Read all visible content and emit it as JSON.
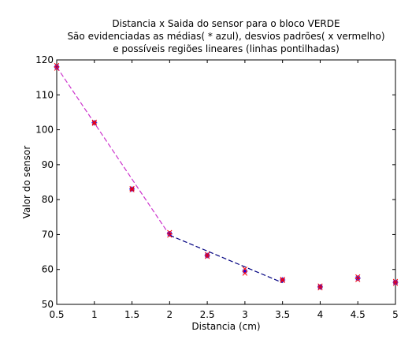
{
  "chart_data": {
    "type": "scatter",
    "title_lines": [
      "Distancia x Saida do sensor para o bloco VERDE",
      "São evidenciadas as médias( * azul), desvios padrões( x vermelho)",
      "e possíveis regiões lineares (linhas pontilhadas)"
    ],
    "xlabel": "Distancia (cm)",
    "ylabel": "Valor do sensor",
    "xlim": [
      0.5,
      5
    ],
    "ylim": [
      50,
      120
    ],
    "xticks": [
      0.5,
      1,
      1.5,
      2,
      2.5,
      3,
      3.5,
      4,
      4.5,
      5
    ],
    "xtick_labels": [
      "0.5",
      "1",
      "1.5",
      "2",
      "2.5",
      "3",
      "3.5",
      "4",
      "4.5",
      "5"
    ],
    "yticks": [
      50,
      60,
      70,
      80,
      90,
      100,
      110,
      120
    ],
    "ytick_labels": [
      "50",
      "60",
      "70",
      "80",
      "90",
      "100",
      "110",
      "120"
    ],
    "grid": false,
    "series": [
      {
        "marker": "*",
        "color": "#0000ff",
        "x": [
          0.5,
          1,
          1.5,
          2,
          2.5,
          3,
          3.5,
          4,
          4.5,
          5
        ],
        "y": [
          118,
          102,
          83,
          70.2,
          64,
          59.5,
          57,
          55,
          57.5,
          56.3
        ]
      },
      {
        "marker": "x",
        "color": "#ff0000",
        "x": [
          0.5,
          0.5,
          1,
          1,
          1.5,
          1.5,
          2,
          2,
          2.5,
          2.5,
          3,
          3,
          3.5,
          3.5,
          4,
          4,
          4.5,
          4.5,
          5,
          5
        ],
        "y": [
          118.4,
          117.6,
          102.2,
          101.8,
          83.2,
          82.8,
          70.6,
          69.8,
          64.3,
          63.7,
          60.1,
          58.9,
          57.2,
          56.8,
          55.3,
          54.7,
          57.9,
          57.1,
          56.6,
          56
        ]
      }
    ],
    "fit_lines": [
      {
        "style": "dashed",
        "color": "#cc33cc",
        "x": [
          0.5,
          2
        ],
        "y": [
          118,
          69.8
        ]
      },
      {
        "style": "dashed",
        "color": "#000080",
        "x": [
          2,
          3.5
        ],
        "y": [
          69.8,
          56.2
        ]
      }
    ]
  }
}
